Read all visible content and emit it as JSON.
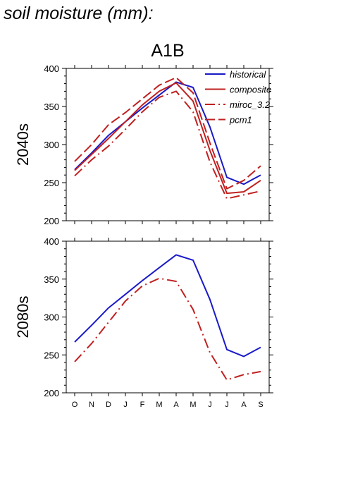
{
  "page_title": "soil moisture (mm):",
  "chart_data": [
    {
      "type": "line",
      "title": "A1B",
      "ylabel": "2040s",
      "xlabel": "",
      "categories": [
        "O",
        "N",
        "D",
        "J",
        "F",
        "M",
        "A",
        "M",
        "J",
        "J",
        "A",
        "S"
      ],
      "ylim": [
        200,
        400
      ],
      "yticks": [
        200,
        250,
        300,
        350,
        400
      ],
      "grid": false,
      "legend": "top-right",
      "series": [
        {
          "name": "historical",
          "color": "#1a1ac8",
          "dash": "solid",
          "values": [
            267,
            289,
            312,
            330,
            348,
            365,
            382,
            375,
            323,
            257,
            248,
            260
          ]
        },
        {
          "name": "composite",
          "color": "#c02020",
          "dash": "solid",
          "values": [
            266,
            287,
            308,
            330,
            352,
            370,
            381,
            357,
            292,
            236,
            238,
            253
          ]
        },
        {
          "name": "miroc_3.2",
          "color": "#c02020",
          "dash": "dashdot",
          "values": [
            259,
            280,
            298,
            320,
            343,
            362,
            370,
            343,
            277,
            229,
            234,
            239
          ]
        },
        {
          "name": "pcm1",
          "color": "#c02020",
          "dash": "dashed",
          "values": [
            278,
            300,
            326,
            342,
            360,
            378,
            388,
            368,
            302,
            242,
            253,
            272
          ]
        }
      ]
    },
    {
      "type": "line",
      "title": "",
      "ylabel": "2080s",
      "xlabel": "",
      "categories": [
        "O",
        "N",
        "D",
        "J",
        "F",
        "M",
        "A",
        "M",
        "J",
        "J",
        "A",
        "S"
      ],
      "ylim": [
        200,
        400
      ],
      "yticks": [
        200,
        250,
        300,
        350,
        400
      ],
      "grid": false,
      "legend": "none",
      "series": [
        {
          "color": "#1a1ac8",
          "dash": "solid",
          "values": [
            267,
            289,
            312,
            330,
            348,
            365,
            382,
            375,
            323,
            257,
            248,
            260
          ]
        },
        {
          "color": "#c02020",
          "dash": "dashdot",
          "values": [
            241,
            265,
            293,
            321,
            341,
            351,
            347,
            310,
            253,
            217,
            224,
            228
          ]
        }
      ]
    }
  ]
}
